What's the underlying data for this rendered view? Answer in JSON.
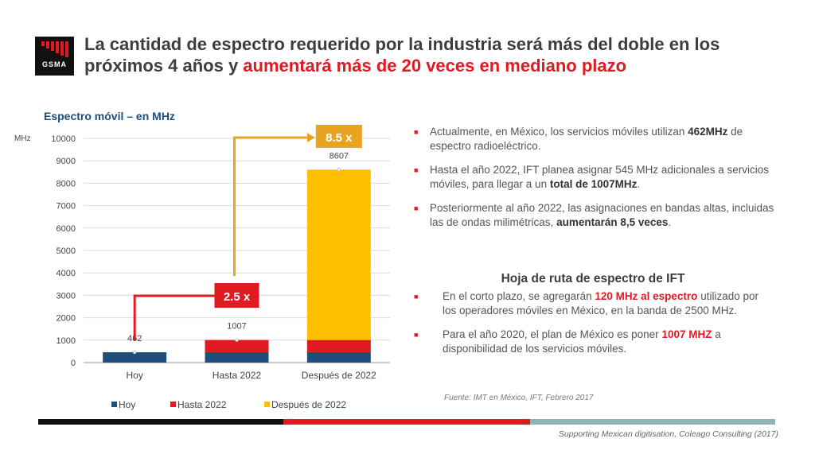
{
  "header": {
    "logo_text": "GSMA",
    "title_part1": "La cantidad de espectro requerido por la industria será más del doble en los próximos 4 años y ",
    "title_highlight": "aumentará más de 20 veces en mediano plazo"
  },
  "chart_title": "Espectro móvil  – en MHz",
  "chart_data": {
    "type": "bar",
    "stacked": true,
    "ylabel": "MHz",
    "ylim": [
      0,
      10000
    ],
    "yticks": [
      0,
      1000,
      2000,
      3000,
      4000,
      5000,
      6000,
      7000,
      8000,
      9000,
      10000
    ],
    "grid": true,
    "legend_position": "bottom",
    "categories": [
      "Hoy",
      "Hasta 2022",
      "Después de 2022"
    ],
    "series": [
      {
        "name": "Hoy",
        "color": "#1f4e79",
        "values": [
          462,
          462,
          462
        ]
      },
      {
        "name": "Hasta 2022",
        "color": "#e11a22",
        "values": [
          0,
          545,
          545
        ]
      },
      {
        "name": "Después de 2022",
        "color": "#ffc000",
        "values": [
          0,
          0,
          7600
        ]
      }
    ],
    "totals": [
      "462",
      "1007",
      "8607"
    ],
    "annotations": [
      {
        "label": "2.5 x",
        "color": "#e11a22"
      },
      {
        "label": "8.5 x",
        "color": "#e8a323"
      }
    ]
  },
  "bullets": [
    {
      "pre": "Actualmente, en México, los servicios móviles utilizan ",
      "bold": "462MHz",
      "post": " de espectro radioeléctrico."
    },
    {
      "pre": "Hasta el año 2022, IFT planea asignar 545 MHz adicionales a servicios móviles, para llegar a un ",
      "bold": "total de 1007MHz",
      "post": "."
    },
    {
      "pre": "Posteriormente al año 2022, las asignaciones en bandas altas, incluidas las de ondas milimétricas, ",
      "bold": "aumentarán 8,5 veces",
      "post": "."
    }
  ],
  "roadmap": {
    "title": "Hoja de ruta de espectro de IFT",
    "items": [
      {
        "pre": "En el corto plazo, se agregarán ",
        "bold": "120 MHz al espectro",
        "post": " utilizado por los operadores móviles en México, en la banda de 2500 MHz."
      },
      {
        "pre": "Para el año 2020, el plan de México es poner ",
        "bold": "1007 MHZ",
        "post": " a disponibilidad de los servicios móviles."
      }
    ]
  },
  "source": "Fuente: IMT en México, IFT, Febrero 2017",
  "footer": "Supporting Mexican digitisation, Coleago Consulting (2017)",
  "colors": {
    "accent_red": "#e11a22",
    "navy": "#1f4e79",
    "gold": "#ffc000",
    "teal": "#8fb5b0"
  }
}
